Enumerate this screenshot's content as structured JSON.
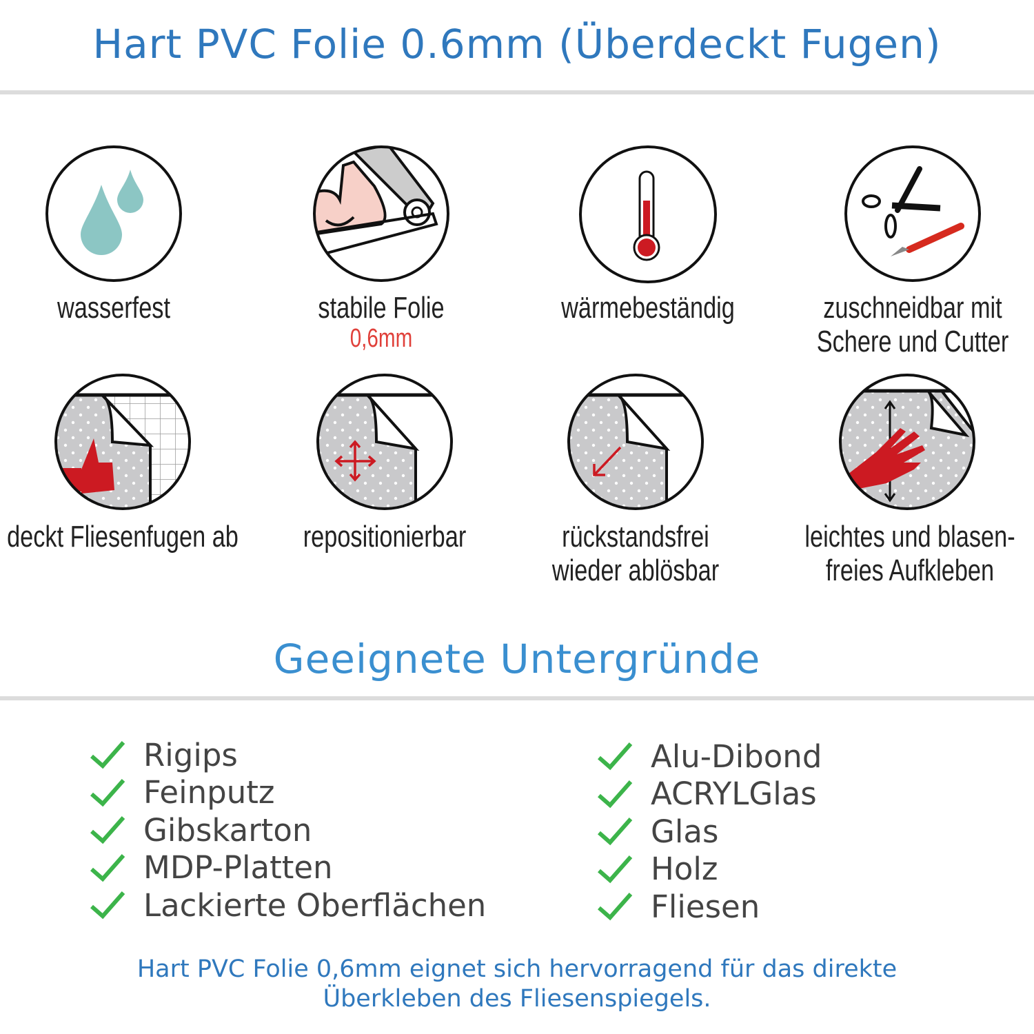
{
  "header": {
    "title": "Hart PVC Folie 0.6mm (Überdeckt Fugen)"
  },
  "features": [
    {
      "icon": "water-drops-icon",
      "line1": "wasserfest"
    },
    {
      "icon": "strong-arm-foil-icon",
      "line1": "stabile Folie",
      "highlight": "0,6mm"
    },
    {
      "icon": "thermometer-icon",
      "line1": "wärmebeständig"
    },
    {
      "icon": "scissors-cutter-icon",
      "line1": "zuschneidbar mit",
      "line2": "Schere und Cutter"
    },
    {
      "icon": "thumbs-up-tiles-icon",
      "line1": "deckt Fliesenfugen ab"
    },
    {
      "icon": "move-arrows-icon",
      "line1": "repositionierbar"
    },
    {
      "icon": "peel-arrow-icon",
      "line1": "rückstandsfrei",
      "line2": "wieder ablösbar"
    },
    {
      "icon": "hand-apply-icon",
      "line1": "leichtes und blasen-",
      "line2": "freies Aufkleben"
    }
  ],
  "surfaces": {
    "title": "Geeignete Untergründe",
    "left": [
      "Rigips",
      "Feinputz",
      "Gibskarton",
      "MDP-Platten",
      "Lackierte Oberflächen"
    ],
    "right": [
      "Alu-Dibond",
      "ACRYLGlas",
      "Glas",
      "Holz",
      "Fliesen"
    ],
    "check_color": "#3cb44a"
  },
  "footer": {
    "line1": "Hart PVC Folie 0,6mm eignet sich hervorragend für das direkte",
    "line2": "Überkleben des Fliesenspiegels."
  },
  "colors": {
    "title": "#2f78bd",
    "accent_red": "#cc1a22",
    "drop": "#8cc6c4"
  }
}
